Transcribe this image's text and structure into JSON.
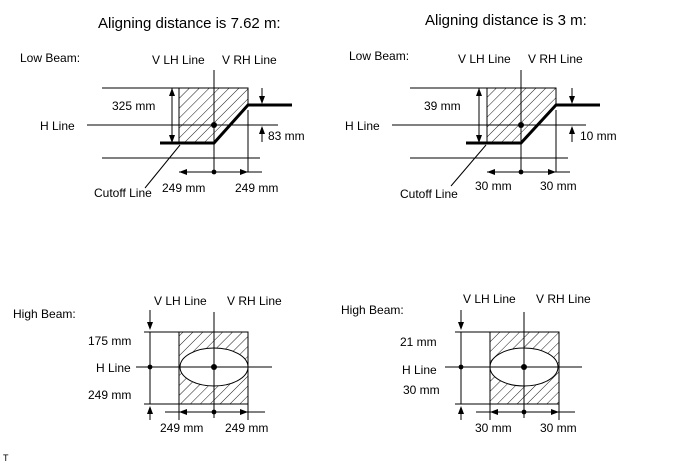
{
  "titles": {
    "left": "Aligning distance is 7.62 m:",
    "right": "Aligning distance is 3 m:"
  },
  "labels": {
    "low_beam": "Low Beam:",
    "high_beam": "High Beam:",
    "v_lh_line": "V LH Line",
    "v_rh_line": "V RH Line",
    "h_line": "H Line",
    "cutoff_line": "Cutoff Line"
  },
  "low_beam_762": {
    "height": "325 mm",
    "step": "83 mm",
    "left_width": "249 mm",
    "right_width": "249 mm"
  },
  "low_beam_3": {
    "height": "39 mm",
    "step": "10 mm",
    "left_width": "30 mm",
    "right_width": "30 mm"
  },
  "high_beam_762": {
    "top": "175 mm",
    "bottom": "249 mm",
    "left_width": "249 mm",
    "right_width": "249 mm"
  },
  "high_beam_3": {
    "top": "21 mm",
    "bottom": "30 mm",
    "left_width": "30 mm",
    "right_width": "30 mm"
  },
  "footer": {
    "mark": "T"
  }
}
